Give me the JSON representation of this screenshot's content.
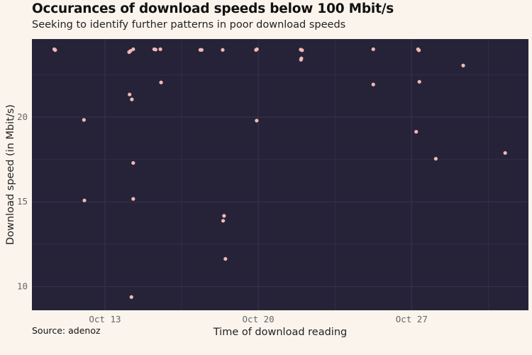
{
  "title": "Occurances of download speeds below 100 Mbit/s",
  "subtitle": "Seeking to identify further patterns in poor download speeds",
  "caption": "Source: adenoz",
  "colors": {
    "background": "#faf4ed",
    "panel": "#262339",
    "grid": "#35314a",
    "point": "#f3b8b6"
  },
  "chart_data": {
    "type": "scatter",
    "title": "Occurances of download speeds below 100 Mbit/s",
    "xlabel": "Time of download reading",
    "ylabel": "Download speed (in Mbit/s)",
    "xlim": [
      "Oct 9 16:00",
      "Nov 1 08:00"
    ],
    "ylim": [
      8.6,
      24.6
    ],
    "xticks": [
      {
        "label": "Oct 13",
        "value": "Oct 13 00:00"
      },
      {
        "label": "Oct 20",
        "value": "Oct 20 00:00"
      },
      {
        "label": "Oct 27",
        "value": "Oct 27 00:00"
      }
    ],
    "yticks": [
      10,
      15,
      20
    ],
    "grid": true,
    "legend": "none",
    "points": [
      {
        "x": "Oct 10 16:30",
        "y": 24.0
      },
      {
        "x": "Oct 10 17:30",
        "y": 23.95
      },
      {
        "x": "Oct 12 01:00",
        "y": 19.83
      },
      {
        "x": "Oct 12 01:30",
        "y": 15.08
      },
      {
        "x": "Oct 14 02:30",
        "y": 23.83
      },
      {
        "x": "Oct 14 04:00",
        "y": 23.9
      },
      {
        "x": "Oct 14 07:00",
        "y": 24.0
      },
      {
        "x": "Oct 14 03:00",
        "y": 21.33
      },
      {
        "x": "Oct 14 05:30",
        "y": 21.04
      },
      {
        "x": "Oct 14 07:00",
        "y": 17.29
      },
      {
        "x": "Oct 14 07:00",
        "y": 15.17
      },
      {
        "x": "Oct 14 05:00",
        "y": 9.38
      },
      {
        "x": "Oct 15 06:00",
        "y": 24.0
      },
      {
        "x": "Oct 15 07:30",
        "y": 23.98
      },
      {
        "x": "Oct 15 12:45",
        "y": 24.0
      },
      {
        "x": "Oct 15 13:30",
        "y": 22.04
      },
      {
        "x": "Oct 17 08:30",
        "y": 23.96
      },
      {
        "x": "Oct 17 10:00",
        "y": 23.96
      },
      {
        "x": "Oct 18 09:00",
        "y": 23.96
      },
      {
        "x": "Oct 18 10:30",
        "y": 14.17
      },
      {
        "x": "Oct 18 09:30",
        "y": 13.88
      },
      {
        "x": "Oct 18 12:00",
        "y": 11.63
      },
      {
        "x": "Oct 19 21:30",
        "y": 23.96
      },
      {
        "x": "Oct 19 22:30",
        "y": 24.0
      },
      {
        "x": "Oct 19 22:15",
        "y": 19.79
      },
      {
        "x": "Oct 21 22:30",
        "y": 23.98
      },
      {
        "x": "Oct 22 00:00",
        "y": 23.94
      },
      {
        "x": "Oct 21 23:15",
        "y": 23.46
      },
      {
        "x": "Oct 21 22:45",
        "y": 23.38
      },
      {
        "x": "Oct 25 06:00",
        "y": 24.0
      },
      {
        "x": "Oct 25 06:00",
        "y": 21.92
      },
      {
        "x": "Oct 27 07:00",
        "y": 24.0
      },
      {
        "x": "Oct 27 08:00",
        "y": 23.94
      },
      {
        "x": "Oct 27 08:30",
        "y": 22.08
      },
      {
        "x": "Oct 27 05:00",
        "y": 19.13
      },
      {
        "x": "Oct 28 02:30",
        "y": 17.54
      },
      {
        "x": "Oct 29 08:30",
        "y": 23.04
      },
      {
        "x": "Oct 31 06:30",
        "y": 17.88
      }
    ]
  }
}
